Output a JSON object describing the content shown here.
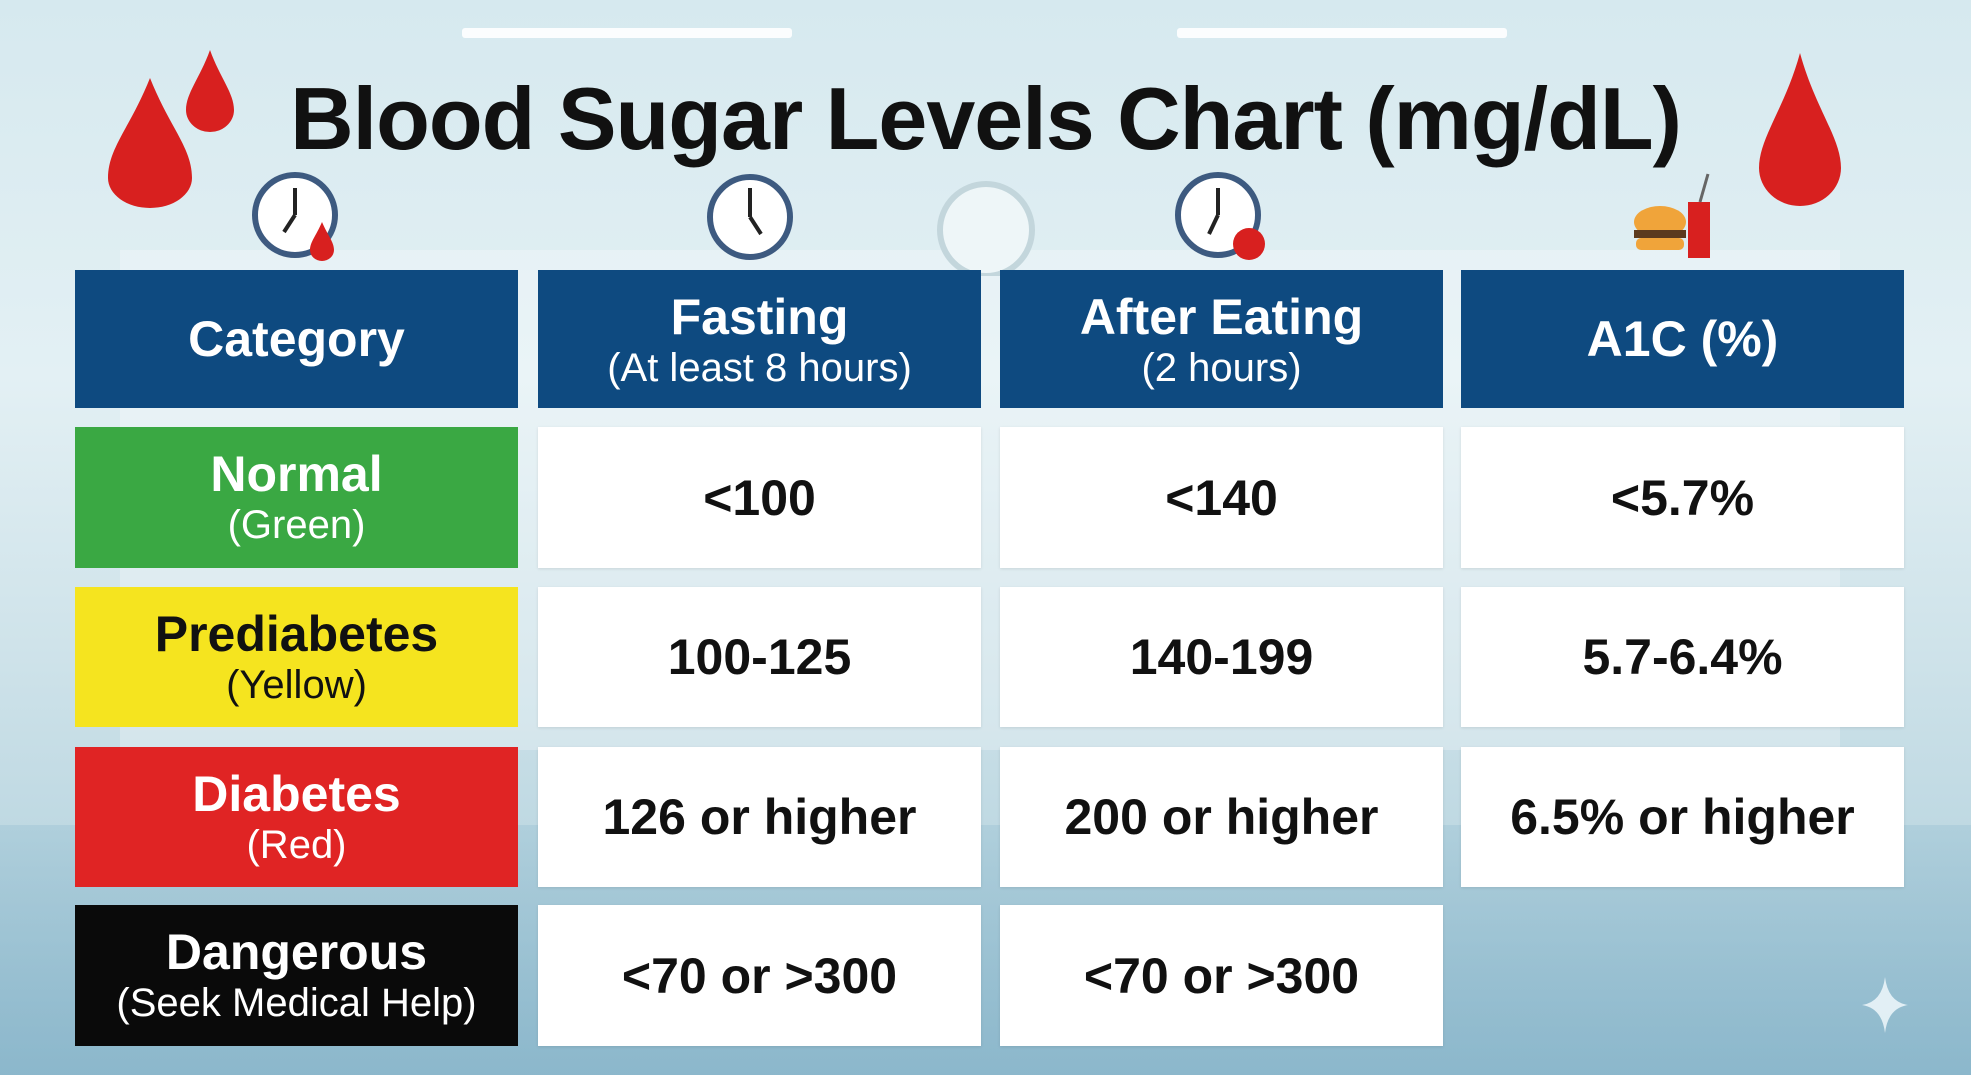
{
  "title": "Blood Sugar Levels Chart (mg/dL)",
  "headers": [
    {
      "main": "Category",
      "sub": ""
    },
    {
      "main": "Fasting",
      "sub": "(At least 8 hours)"
    },
    {
      "main": "After Eating",
      "sub": "(2 hours)"
    },
    {
      "main": "A1C (%)",
      "sub": ""
    }
  ],
  "rows": [
    {
      "category": "Normal",
      "color_name": "(Green)",
      "color": "#3aa843",
      "text_color": "#ffffff",
      "fasting": "<100",
      "after_eating": "<140",
      "a1c": "<5.7%"
    },
    {
      "category": "Prediabetes",
      "color_name": "(Yellow)",
      "color": "#f5e41f",
      "text_color": "#111111",
      "fasting": "100-125",
      "after_eating": "140-199",
      "a1c": "5.7-6.4%"
    },
    {
      "category": "Diabetes",
      "color_name": "(Red)",
      "color": "#e02424",
      "text_color": "#ffffff",
      "fasting": "126 or higher",
      "after_eating": "200 or higher",
      "a1c": "6.5% or higher"
    },
    {
      "category": "Dangerous",
      "color_name": "(Seek Medical Help)",
      "color": "#0a0a0a",
      "text_color": "#ffffff",
      "fasting": "<70 or >300",
      "after_eating": "<70 or >300"
    }
  ],
  "icons": [
    "blood-drop-icon",
    "clock-icon",
    "apple-icon",
    "burger-icon",
    "drink-icon",
    "sparkle-icon"
  ]
}
